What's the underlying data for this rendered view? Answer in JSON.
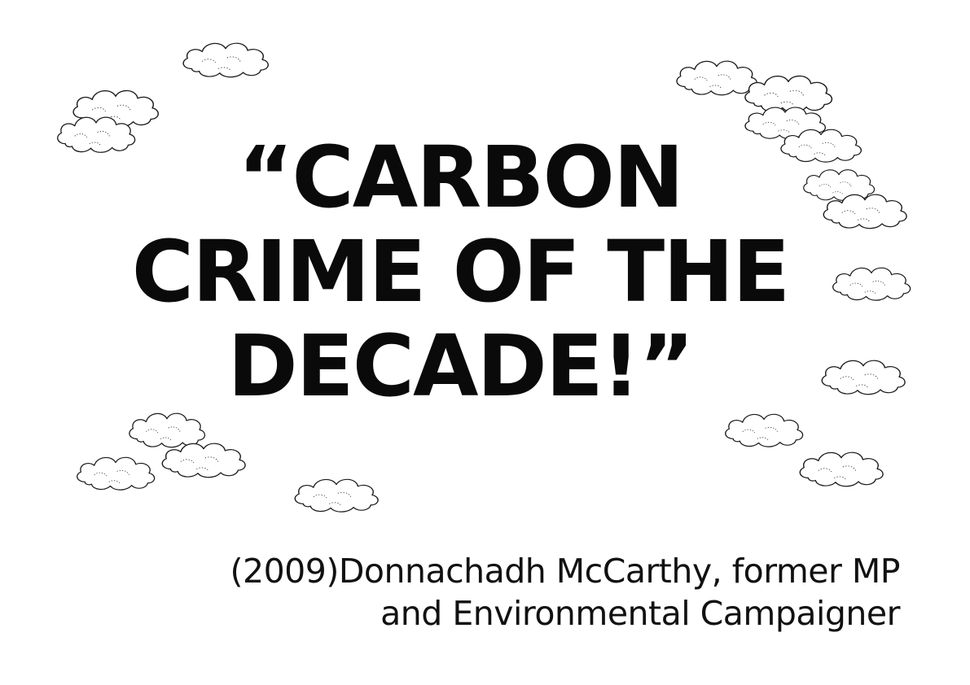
{
  "quote": {
    "line1": "“CARBON",
    "line2": "CRIME OF THE",
    "line3": "DECADE!”"
  },
  "attribution": {
    "line1": "(2009)Donnachadh McCarthy, former MP",
    "line2": "and Environmental Campaigner"
  },
  "colors": {
    "background": "#ffffff",
    "text": "#0a0a0a",
    "cloud_stroke": "#1a1a1a"
  },
  "decoration": {
    "icon": "cloud-icon"
  }
}
